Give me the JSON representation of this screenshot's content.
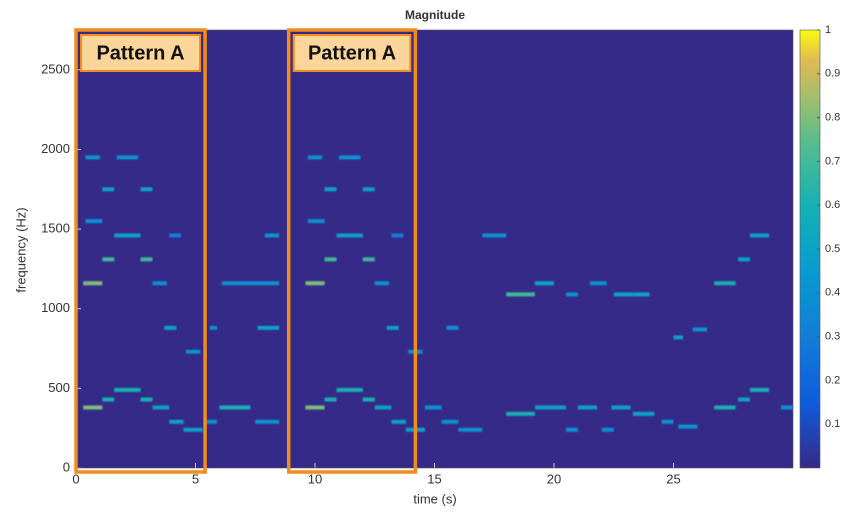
{
  "chart_data": {
    "type": "spectrogram",
    "title": "Magnitude",
    "x_label": "time (s)",
    "y_label": "frequency (Hz)",
    "xlim": [
      0,
      30
    ],
    "xticks": [
      0,
      5,
      10,
      15,
      20,
      25
    ],
    "ylim": [
      0,
      2750
    ],
    "yticks": [
      0,
      500,
      1000,
      1500,
      2000,
      2500
    ],
    "clim": [
      0,
      1
    ],
    "cticks": [
      0.1,
      0.2,
      0.3,
      0.4,
      0.5,
      0.6,
      0.7,
      0.8,
      0.9,
      1
    ],
    "colormap": "parula",
    "annotations": [
      {
        "text": "Pattern A",
        "x0": 0,
        "x1": 5.4
      },
      {
        "text": "Pattern A",
        "x0": 8.9,
        "x1": 14.2
      }
    ],
    "segments": [
      {
        "t0": 0.3,
        "t1": 1.1,
        "f": 380,
        "m": 0.8
      },
      {
        "t0": 0.3,
        "t1": 1.1,
        "f": 1160,
        "m": 0.8
      },
      {
        "t0": 0.4,
        "t1": 1.1,
        "f": 1550,
        "m": 0.4
      },
      {
        "t0": 0.4,
        "t1": 1.0,
        "f": 1950,
        "m": 0.4
      },
      {
        "t0": 1.1,
        "t1": 1.6,
        "f": 430,
        "m": 0.6
      },
      {
        "t0": 1.1,
        "t1": 1.6,
        "f": 1310,
        "m": 0.7
      },
      {
        "t0": 1.1,
        "t1": 1.6,
        "f": 1750,
        "m": 0.5
      },
      {
        "t0": 1.6,
        "t1": 2.7,
        "f": 490,
        "m": 0.6
      },
      {
        "t0": 1.6,
        "t1": 2.7,
        "f": 1460,
        "m": 0.5
      },
      {
        "t0": 1.7,
        "t1": 2.6,
        "f": 1950,
        "m": 0.4
      },
      {
        "t0": 2.7,
        "t1": 3.2,
        "f": 430,
        "m": 0.6
      },
      {
        "t0": 2.7,
        "t1": 3.2,
        "f": 1310,
        "m": 0.7
      },
      {
        "t0": 2.7,
        "t1": 3.2,
        "f": 1750,
        "m": 0.5
      },
      {
        "t0": 3.2,
        "t1": 3.9,
        "f": 380,
        "m": 0.5
      },
      {
        "t0": 3.2,
        "t1": 3.8,
        "f": 1160,
        "m": 0.4
      },
      {
        "t0": 3.7,
        "t1": 4.2,
        "f": 880,
        "m": 0.5
      },
      {
        "t0": 3.9,
        "t1": 4.5,
        "f": 290,
        "m": 0.5
      },
      {
        "t0": 3.9,
        "t1": 4.4,
        "f": 1460,
        "m": 0.3
      },
      {
        "t0": 4.5,
        "t1": 5.3,
        "f": 240,
        "m": 0.5
      },
      {
        "t0": 4.6,
        "t1": 5.2,
        "f": 730,
        "m": 0.4
      },
      {
        "t0": 5.4,
        "t1": 5.9,
        "f": 290,
        "m": 0.4
      },
      {
        "t0": 5.6,
        "t1": 5.9,
        "f": 880,
        "m": 0.4
      },
      {
        "t0": 6.0,
        "t1": 7.3,
        "f": 380,
        "m": 0.6
      },
      {
        "t0": 6.1,
        "t1": 8.5,
        "f": 1160,
        "m": 0.4
      },
      {
        "t0": 7.5,
        "t1": 8.5,
        "f": 290,
        "m": 0.4
      },
      {
        "t0": 7.6,
        "t1": 8.5,
        "f": 880,
        "m": 0.5
      },
      {
        "t0": 7.9,
        "t1": 8.5,
        "f": 1460,
        "m": 0.4
      },
      {
        "t0": 9.6,
        "t1": 10.4,
        "f": 380,
        "m": 0.8
      },
      {
        "t0": 9.6,
        "t1": 10.4,
        "f": 1160,
        "m": 0.8
      },
      {
        "t0": 9.7,
        "t1": 10.4,
        "f": 1550,
        "m": 0.4
      },
      {
        "t0": 9.7,
        "t1": 10.3,
        "f": 1950,
        "m": 0.4
      },
      {
        "t0": 10.4,
        "t1": 10.9,
        "f": 430,
        "m": 0.6
      },
      {
        "t0": 10.4,
        "t1": 10.9,
        "f": 1310,
        "m": 0.7
      },
      {
        "t0": 10.4,
        "t1": 10.9,
        "f": 1750,
        "m": 0.5
      },
      {
        "t0": 10.9,
        "t1": 12.0,
        "f": 490,
        "m": 0.6
      },
      {
        "t0": 10.9,
        "t1": 12.0,
        "f": 1460,
        "m": 0.5
      },
      {
        "t0": 11.0,
        "t1": 11.9,
        "f": 1950,
        "m": 0.4
      },
      {
        "t0": 12.0,
        "t1": 12.5,
        "f": 430,
        "m": 0.6
      },
      {
        "t0": 12.0,
        "t1": 12.5,
        "f": 1310,
        "m": 0.7
      },
      {
        "t0": 12.0,
        "t1": 12.5,
        "f": 1750,
        "m": 0.5
      },
      {
        "t0": 12.5,
        "t1": 13.2,
        "f": 380,
        "m": 0.5
      },
      {
        "t0": 12.5,
        "t1": 13.1,
        "f": 1160,
        "m": 0.4
      },
      {
        "t0": 13.0,
        "t1": 13.5,
        "f": 880,
        "m": 0.5
      },
      {
        "t0": 13.2,
        "t1": 13.8,
        "f": 290,
        "m": 0.5
      },
      {
        "t0": 13.2,
        "t1": 13.7,
        "f": 1460,
        "m": 0.3
      },
      {
        "t0": 13.8,
        "t1": 14.6,
        "f": 240,
        "m": 0.5
      },
      {
        "t0": 13.9,
        "t1": 14.5,
        "f": 730,
        "m": 0.4
      },
      {
        "t0": 14.6,
        "t1": 15.3,
        "f": 380,
        "m": 0.4
      },
      {
        "t0": 15.3,
        "t1": 16.0,
        "f": 290,
        "m": 0.4
      },
      {
        "t0": 16.0,
        "t1": 17.0,
        "f": 240,
        "m": 0.4
      },
      {
        "t0": 15.5,
        "t1": 16.0,
        "f": 880,
        "m": 0.4
      },
      {
        "t0": 17.0,
        "t1": 18.0,
        "f": 1460,
        "m": 0.4
      },
      {
        "t0": 18.0,
        "t1": 19.2,
        "f": 1090,
        "m": 0.7
      },
      {
        "t0": 18.0,
        "t1": 19.2,
        "f": 340,
        "m": 0.6
      },
      {
        "t0": 19.2,
        "t1": 20.0,
        "f": 1160,
        "m": 0.5
      },
      {
        "t0": 19.2,
        "t1": 20.5,
        "f": 380,
        "m": 0.5
      },
      {
        "t0": 20.5,
        "t1": 21.0,
        "f": 240,
        "m": 0.4
      },
      {
        "t0": 20.5,
        "t1": 21.0,
        "f": 1090,
        "m": 0.4
      },
      {
        "t0": 21.0,
        "t1": 21.8,
        "f": 380,
        "m": 0.5
      },
      {
        "t0": 21.5,
        "t1": 22.2,
        "f": 1160,
        "m": 0.4
      },
      {
        "t0": 22.0,
        "t1": 22.5,
        "f": 240,
        "m": 0.4
      },
      {
        "t0": 22.4,
        "t1": 23.2,
        "f": 380,
        "m": 0.5
      },
      {
        "t0": 22.5,
        "t1": 23.3,
        "f": 1090,
        "m": 0.5
      },
      {
        "t0": 23.3,
        "t1": 24.2,
        "f": 340,
        "m": 0.5
      },
      {
        "t0": 23.3,
        "t1": 24.0,
        "f": 1090,
        "m": 0.5
      },
      {
        "t0": 24.5,
        "t1": 25.0,
        "f": 290,
        "m": 0.4
      },
      {
        "t0": 25.0,
        "t1": 25.4,
        "f": 820,
        "m": 0.5
      },
      {
        "t0": 25.2,
        "t1": 26.0,
        "f": 260,
        "m": 0.4
      },
      {
        "t0": 25.8,
        "t1": 26.4,
        "f": 870,
        "m": 0.4
      },
      {
        "t0": 26.7,
        "t1": 27.6,
        "f": 380,
        "m": 0.6
      },
      {
        "t0": 26.7,
        "t1": 27.6,
        "f": 1160,
        "m": 0.6
      },
      {
        "t0": 27.7,
        "t1": 28.2,
        "f": 430,
        "m": 0.5
      },
      {
        "t0": 27.7,
        "t1": 28.2,
        "f": 1310,
        "m": 0.5
      },
      {
        "t0": 28.2,
        "t1": 29.0,
        "f": 490,
        "m": 0.6
      },
      {
        "t0": 28.2,
        "t1": 29.0,
        "f": 1460,
        "m": 0.5
      },
      {
        "t0": 29.5,
        "t1": 30.0,
        "f": 380,
        "m": 0.4
      }
    ]
  }
}
